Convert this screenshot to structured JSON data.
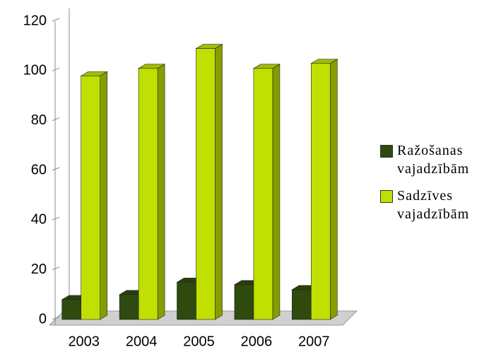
{
  "chart_data": {
    "type": "bar",
    "categories": [
      "2003",
      "2004",
      "2005",
      "2006",
      "2007"
    ],
    "series": [
      {
        "name": "Ražošanas vajadzībām",
        "color": "#2e4a0f",
        "values": [
          8,
          10,
          15,
          14,
          12
        ]
      },
      {
        "name": "Sadzīves vajadzībām",
        "color": "#bfe000",
        "values": [
          98,
          101,
          109,
          101,
          103
        ]
      }
    ],
    "ylim": [
      0,
      120
    ],
    "yticks": [
      0,
      20,
      40,
      60,
      80,
      100,
      120
    ],
    "grid": false,
    "legend": "right"
  }
}
